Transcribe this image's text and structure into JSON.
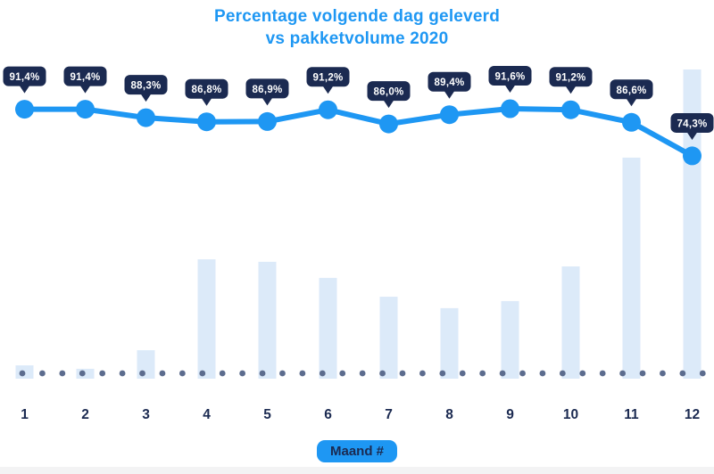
{
  "page": {
    "title_line1": "Percentage volgende dag geleverd",
    "title_line2": "vs pakketvolume 2020",
    "xaxis_badge": "Maand #"
  },
  "colors": {
    "accent_blue": "#1E97F3",
    "navy": "#1B2A51",
    "bar_fill": "#DCEAF9",
    "dot_slate": "#5C6C8E",
    "badge_text": "#FFFFFF",
    "background": "#FFFFFF",
    "footer_strip": "#F3F3F4"
  },
  "chart_data": {
    "type": "line",
    "title": "Percentage volgende dag geleverd vs pakketvolume 2020",
    "categories": [
      "1",
      "2",
      "3",
      "4",
      "5",
      "6",
      "7",
      "8",
      "9",
      "10",
      "11",
      "12"
    ],
    "xlabel": "Maand #",
    "ylabel": "",
    "legend_position": "none",
    "grid": "off",
    "ylim_percent": [
      70,
      95
    ],
    "series": [
      {
        "name": "Percentage volgende dag geleverd",
        "type": "line",
        "unit": "%",
        "values": [
          91.4,
          91.4,
          88.3,
          86.8,
          86.9,
          91.2,
          86.0,
          89.4,
          91.6,
          91.2,
          86.6,
          74.3
        ],
        "point_labels": [
          "91,4%",
          "91,4%",
          "88,3%",
          "86,8%",
          "86,9%",
          "91,2%",
          "86,0%",
          "89,4%",
          "91,6%",
          "91,2%",
          "86,6%",
          "74,3%"
        ]
      },
      {
        "name": "Pakketvolume 2020",
        "type": "bar",
        "unit": "relative index, December = 100 (estimated; no value axis shown)",
        "values": [
          4.3,
          3.2,
          9.2,
          38.6,
          37.8,
          32.6,
          26.5,
          22.8,
          25.1,
          36.3,
          71.5,
          100
        ]
      }
    ],
    "baseline": "dotted horizontal marker row at zero volume"
  }
}
